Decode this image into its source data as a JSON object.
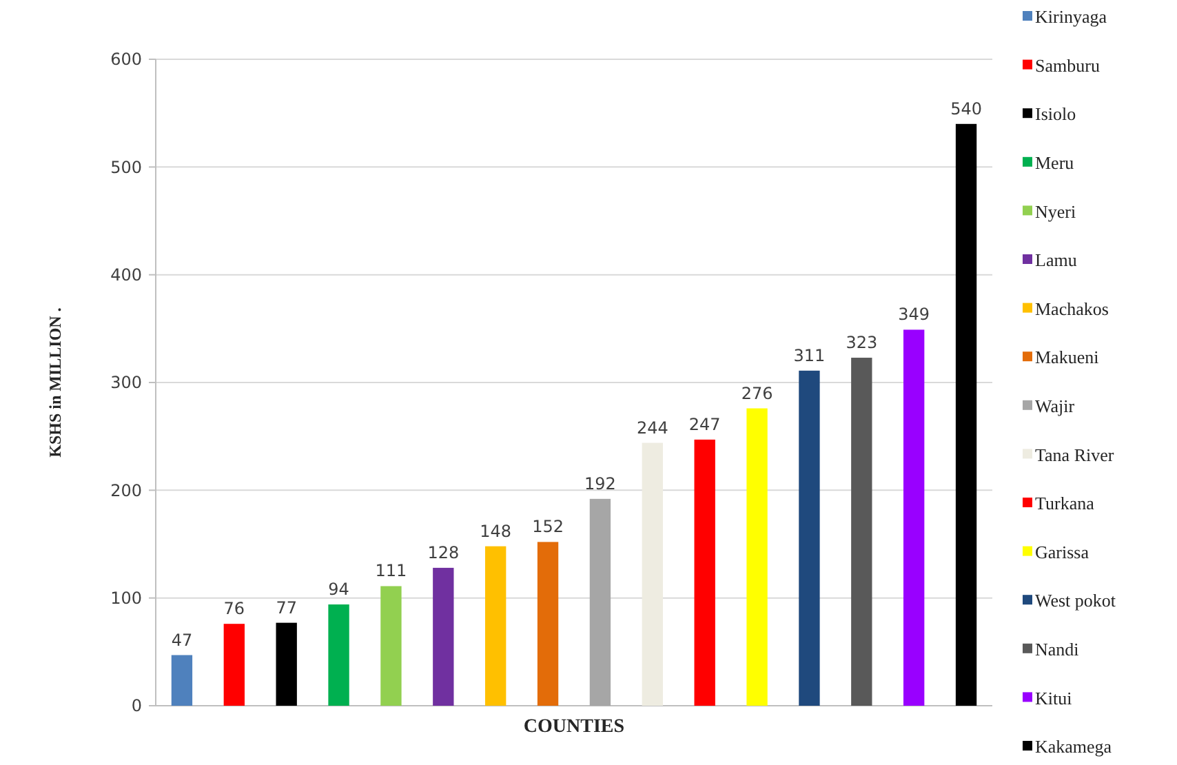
{
  "chart_data": {
    "type": "bar",
    "xlabel": "COUNTIES",
    "ylabel": "KSHS in MILLION .",
    "categories": [
      null,
      null,
      null,
      null,
      null,
      null,
      null,
      null,
      null,
      null,
      null,
      null,
      null,
      null,
      null,
      null
    ],
    "series": [
      {
        "name": "Kirinyaga",
        "color": "#4f81bd",
        "values": [
          47,
          null,
          null,
          null,
          null,
          null,
          null,
          null,
          null,
          null,
          null,
          null,
          null,
          null,
          null,
          null
        ]
      },
      {
        "name": "Samburu",
        "color": "#ff0000",
        "values": [
          null,
          76,
          null,
          null,
          null,
          null,
          null,
          null,
          null,
          null,
          null,
          null,
          null,
          null,
          null,
          null
        ]
      },
      {
        "name": "Isiolo",
        "color": "#000000",
        "values": [
          null,
          null,
          77,
          null,
          null,
          null,
          null,
          null,
          null,
          null,
          null,
          null,
          null,
          null,
          null,
          null
        ]
      },
      {
        "name": "Meru",
        "color": "#00b050",
        "values": [
          null,
          null,
          null,
          94,
          null,
          null,
          null,
          null,
          null,
          null,
          null,
          null,
          null,
          null,
          null,
          null
        ]
      },
      {
        "name": "Nyeri",
        "color": "#92d050",
        "values": [
          null,
          null,
          null,
          null,
          111,
          null,
          null,
          null,
          null,
          null,
          null,
          null,
          null,
          null,
          null,
          null
        ]
      },
      {
        "name": "Lamu",
        "color": "#7030a0",
        "values": [
          null,
          null,
          null,
          null,
          null,
          128,
          null,
          null,
          null,
          null,
          null,
          null,
          null,
          null,
          null,
          null
        ]
      },
      {
        "name": "Machakos",
        "color": "#ffc000",
        "values": [
          null,
          null,
          null,
          null,
          null,
          null,
          148,
          null,
          null,
          null,
          null,
          null,
          null,
          null,
          null,
          null
        ]
      },
      {
        "name": "Makueni",
        "color": "#e36c09",
        "values": [
          null,
          null,
          null,
          null,
          null,
          null,
          null,
          152,
          null,
          null,
          null,
          null,
          null,
          null,
          null,
          null
        ]
      },
      {
        "name": "Wajir",
        "color": "#a6a6a6",
        "values": [
          null,
          null,
          null,
          null,
          null,
          null,
          null,
          null,
          192,
          null,
          null,
          null,
          null,
          null,
          null,
          null
        ]
      },
      {
        "name": "Tana River",
        "color": "#eeece1",
        "values": [
          null,
          null,
          null,
          null,
          null,
          null,
          null,
          null,
          null,
          244,
          null,
          null,
          null,
          null,
          null,
          null
        ]
      },
      {
        "name": "Turkana",
        "color": "#ff0000",
        "values": [
          null,
          null,
          null,
          null,
          null,
          null,
          null,
          null,
          null,
          null,
          247,
          null,
          null,
          null,
          null,
          null
        ]
      },
      {
        "name": "Garissa",
        "color": "#ffff00",
        "values": [
          null,
          null,
          null,
          null,
          null,
          null,
          null,
          null,
          null,
          null,
          null,
          276,
          null,
          null,
          null,
          null
        ]
      },
      {
        "name": "West pokot",
        "color": "#1f497d",
        "values": [
          null,
          null,
          null,
          null,
          null,
          null,
          null,
          null,
          null,
          null,
          null,
          null,
          311,
          null,
          null,
          null
        ]
      },
      {
        "name": "Nandi",
        "color": "#595959",
        "values": [
          null,
          null,
          null,
          null,
          null,
          null,
          null,
          null,
          null,
          null,
          null,
          null,
          null,
          323,
          null,
          null
        ]
      },
      {
        "name": "Kitui",
        "color": "#9900ff",
        "values": [
          null,
          null,
          null,
          null,
          null,
          null,
          null,
          null,
          null,
          null,
          null,
          null,
          null,
          null,
          349,
          null
        ]
      },
      {
        "name": "Kakamega",
        "color": "#000000",
        "values": [
          null,
          null,
          null,
          null,
          null,
          null,
          null,
          null,
          null,
          null,
          null,
          null,
          null,
          null,
          null,
          540
        ]
      }
    ],
    "ylim": [
      0,
      600
    ],
    "yticks": [
      0,
      100,
      200,
      300,
      400,
      500,
      600
    ],
    "grid": "y",
    "data_labels": true,
    "legend": "right",
    "tick_labels": "y"
  }
}
